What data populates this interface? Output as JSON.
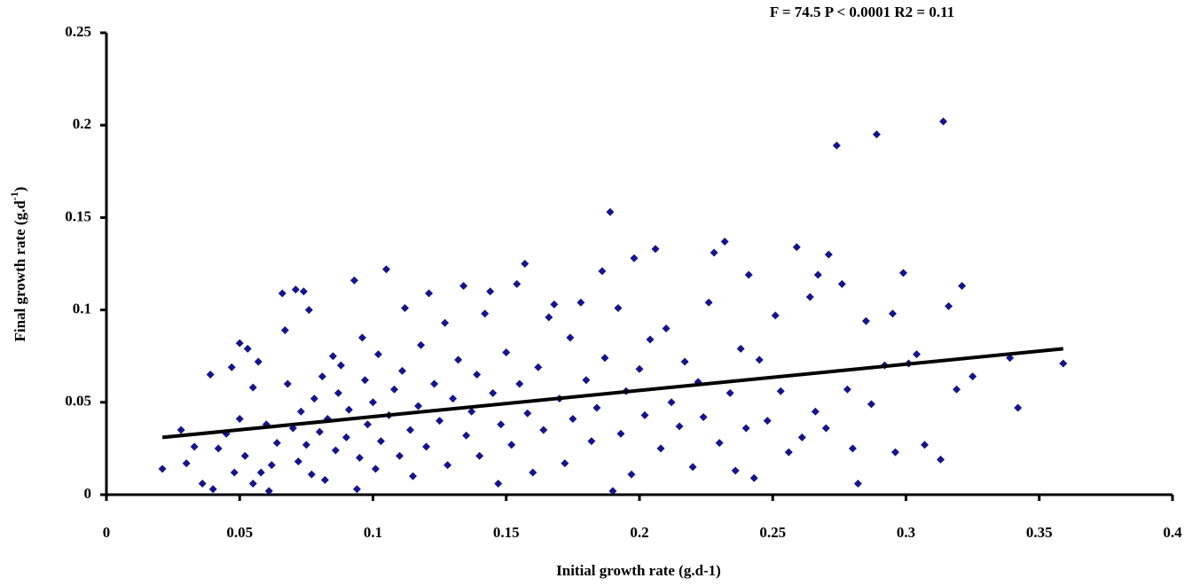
{
  "chart_data": {
    "type": "scatter",
    "annotation": "F = 74.5 P < 0.0001 R2 = 0.11",
    "xlabel": "Initial growth rate (g.d-1)",
    "ylabel_parts": [
      "Final growth rate (g.d",
      "-1",
      ")"
    ],
    "xlim": [
      0,
      0.4
    ],
    "xticks": [
      0,
      0.05,
      0.1,
      0.15,
      0.2,
      0.25,
      0.3,
      0.35,
      0.4
    ],
    "ylim": [
      0,
      0.25
    ],
    "yticks": [
      0,
      0.05,
      0.1,
      0.15,
      0.2,
      0.25
    ],
    "grid": false,
    "series": [
      {
        "color": "#14148c",
        "x": [
          0.021,
          0.028,
          0.03,
          0.033,
          0.036,
          0.039,
          0.04,
          0.042,
          0.045,
          0.047,
          0.048,
          0.05,
          0.05,
          0.052,
          0.053,
          0.055,
          0.055,
          0.057,
          0.058,
          0.06,
          0.061,
          0.062,
          0.064,
          0.066,
          0.067,
          0.068,
          0.07,
          0.071,
          0.072,
          0.073,
          0.074,
          0.075,
          0.076,
          0.077,
          0.078,
          0.08,
          0.081,
          0.082,
          0.083,
          0.085,
          0.086,
          0.087,
          0.088,
          0.09,
          0.091,
          0.093,
          0.094,
          0.095,
          0.096,
          0.097,
          0.098,
          0.1,
          0.101,
          0.102,
          0.103,
          0.105,
          0.106,
          0.108,
          0.11,
          0.111,
          0.112,
          0.114,
          0.115,
          0.117,
          0.118,
          0.12,
          0.121,
          0.123,
          0.125,
          0.127,
          0.128,
          0.13,
          0.132,
          0.134,
          0.135,
          0.137,
          0.139,
          0.14,
          0.142,
          0.144,
          0.145,
          0.147,
          0.148,
          0.15,
          0.152,
          0.154,
          0.155,
          0.157,
          0.158,
          0.16,
          0.162,
          0.164,
          0.166,
          0.168,
          0.17,
          0.172,
          0.174,
          0.175,
          0.178,
          0.18,
          0.182,
          0.184,
          0.186,
          0.187,
          0.189,
          0.19,
          0.192,
          0.193,
          0.195,
          0.197,
          0.198,
          0.2,
          0.202,
          0.204,
          0.206,
          0.208,
          0.21,
          0.212,
          0.215,
          0.217,
          0.22,
          0.222,
          0.224,
          0.226,
          0.228,
          0.23,
          0.232,
          0.234,
          0.236,
          0.238,
          0.24,
          0.241,
          0.243,
          0.245,
          0.248,
          0.251,
          0.253,
          0.256,
          0.259,
          0.261,
          0.264,
          0.266,
          0.267,
          0.27,
          0.271,
          0.274,
          0.276,
          0.278,
          0.28,
          0.282,
          0.285,
          0.287,
          0.289,
          0.292,
          0.295,
          0.296,
          0.299,
          0.301,
          0.304,
          0.307,
          0.313,
          0.314,
          0.316,
          0.319,
          0.321,
          0.325,
          0.339,
          0.342,
          0.359
        ],
        "values": [
          0.014,
          0.035,
          0.017,
          0.026,
          0.006,
          0.065,
          0.003,
          0.025,
          0.033,
          0.069,
          0.012,
          0.041,
          0.082,
          0.021,
          0.079,
          0.006,
          0.058,
          0.072,
          0.012,
          0.038,
          0.002,
          0.016,
          0.028,
          0.109,
          0.089,
          0.06,
          0.036,
          0.111,
          0.018,
          0.045,
          0.11,
          0.027,
          0.1,
          0.011,
          0.052,
          0.034,
          0.064,
          0.008,
          0.041,
          0.075,
          0.024,
          0.055,
          0.07,
          0.031,
          0.046,
          0.116,
          0.003,
          0.02,
          0.085,
          0.062,
          0.038,
          0.05,
          0.014,
          0.076,
          0.029,
          0.122,
          0.043,
          0.057,
          0.021,
          0.067,
          0.101,
          0.035,
          0.01,
          0.048,
          0.081,
          0.026,
          0.109,
          0.06,
          0.04,
          0.093,
          0.016,
          0.052,
          0.073,
          0.113,
          0.032,
          0.045,
          0.065,
          0.021,
          0.098,
          0.11,
          0.055,
          0.006,
          0.038,
          0.077,
          0.027,
          0.114,
          0.06,
          0.125,
          0.044,
          0.012,
          0.069,
          0.035,
          0.096,
          0.103,
          0.052,
          0.017,
          0.085,
          0.041,
          0.104,
          0.062,
          0.029,
          0.047,
          0.121,
          0.074,
          0.153,
          0.002,
          0.101,
          0.033,
          0.056,
          0.011,
          0.128,
          0.068,
          0.043,
          0.084,
          0.133,
          0.025,
          0.09,
          0.05,
          0.037,
          0.072,
          0.015,
          0.061,
          0.042,
          0.104,
          0.131,
          0.028,
          0.137,
          0.055,
          0.013,
          0.079,
          0.036,
          0.119,
          0.009,
          0.073,
          0.04,
          0.097,
          0.056,
          0.023,
          0.134,
          0.031,
          0.107,
          0.045,
          0.119,
          0.036,
          0.13,
          0.189,
          0.114,
          0.057,
          0.025,
          0.006,
          0.094,
          0.049,
          0.195,
          0.07,
          0.098,
          0.023,
          0.12,
          0.071,
          0.076,
          0.027,
          0.019,
          0.202,
          0.102,
          0.057,
          0.113,
          0.064,
          0.074,
          0.047,
          0.071
        ]
      }
    ],
    "fit": {
      "color": "#000000",
      "x": [
        0.021,
        0.359
      ],
      "values": [
        0.031,
        0.079
      ]
    }
  }
}
